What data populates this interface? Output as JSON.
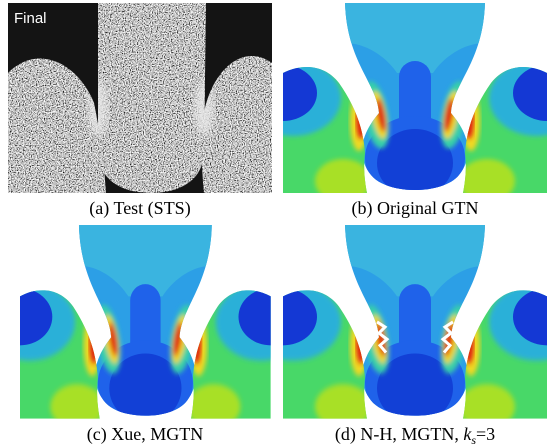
{
  "panels": [
    {
      "label": "(a) Test (STS)",
      "image_text": "Final"
    },
    {
      "label": "(b) Original GTN"
    },
    {
      "label": "(c) Xue, MGTN"
    },
    {
      "label": [
        "(d) N-H, MGTN, ",
        "k",
        "s",
        "=3"
      ]
    }
  ]
}
